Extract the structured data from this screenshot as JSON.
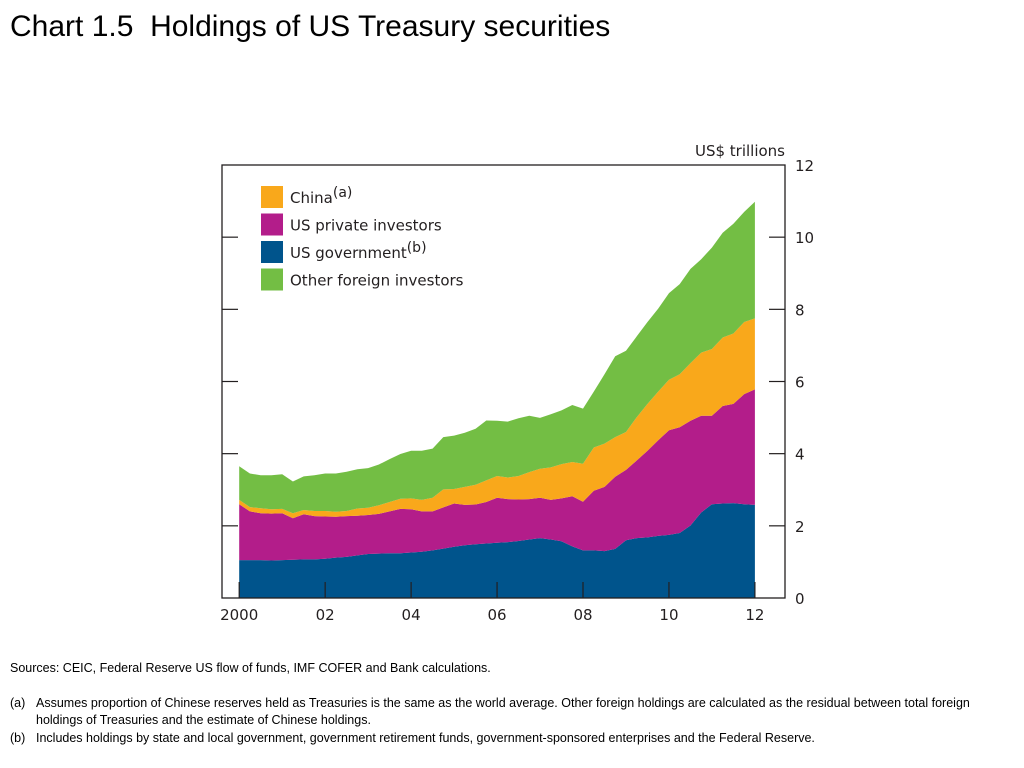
{
  "title": "Chart 1.5  Holdings of US Treasury securities",
  "unit_label": "US$ trillions",
  "sources": "Sources:  CEIC, Federal Reserve US flow of funds, IMF COFER and Bank calculations.",
  "notes": [
    {
      "mark": "(a)",
      "text": "Assumes proportion of Chinese reserves held as Treasuries is the same as the world average.  Other foreign holdings are calculated as the residual between total foreign holdings of Treasuries and the estimate of Chinese holdings."
    },
    {
      "mark": "(b)",
      "text": "Includes holdings by state and local government, government retirement funds, government-sponsored enterprises and the Federal Reserve."
    }
  ],
  "chart_data": {
    "type": "area",
    "stacked": true,
    "legend_position": "top-left",
    "grid": false,
    "ylabel": "US$ trillions",
    "ylim": [
      0,
      12
    ],
    "yticks": [
      0,
      2,
      4,
      6,
      8,
      10,
      12
    ],
    "xlim": [
      1999.6,
      2012.7
    ],
    "xticks": [
      2000,
      2002,
      2004,
      2006,
      2008,
      2010,
      2012
    ],
    "xtick_labels": [
      "2000",
      "02",
      "04",
      "06",
      "08",
      "10",
      "12"
    ],
    "x": [
      2000.0,
      2000.25,
      2000.5,
      2000.75,
      2001.0,
      2001.25,
      2001.5,
      2001.75,
      2002.0,
      2002.25,
      2002.5,
      2002.75,
      2003.0,
      2003.25,
      2003.5,
      2003.75,
      2004.0,
      2004.25,
      2004.5,
      2004.75,
      2005.0,
      2005.25,
      2005.5,
      2005.75,
      2006.0,
      2006.25,
      2006.5,
      2006.75,
      2007.0,
      2007.25,
      2007.5,
      2007.75,
      2008.0,
      2008.25,
      2008.5,
      2008.75,
      2009.0,
      2009.25,
      2009.5,
      2009.75,
      2010.0,
      2010.25,
      2010.5,
      2010.75,
      2011.0,
      2011.25,
      2011.5,
      2011.75,
      2012.0
    ],
    "series": [
      {
        "name": "US government",
        "legend_sup": "(b)",
        "color": "#00548c",
        "values": [
          1.05,
          1.05,
          1.05,
          1.04,
          1.05,
          1.06,
          1.07,
          1.07,
          1.09,
          1.12,
          1.14,
          1.18,
          1.22,
          1.23,
          1.24,
          1.24,
          1.26,
          1.28,
          1.32,
          1.37,
          1.42,
          1.46,
          1.49,
          1.51,
          1.53,
          1.55,
          1.58,
          1.62,
          1.66,
          1.62,
          1.57,
          1.43,
          1.32,
          1.32,
          1.3,
          1.36,
          1.6,
          1.66,
          1.68,
          1.72,
          1.75,
          1.8,
          2.01,
          2.37,
          2.6,
          2.62,
          2.63,
          2.6,
          2.58
        ]
      },
      {
        "name": "US private investors",
        "color": "#b31d8a",
        "values": [
          1.55,
          1.35,
          1.3,
          1.3,
          1.3,
          1.15,
          1.25,
          1.2,
          1.17,
          1.13,
          1.13,
          1.1,
          1.08,
          1.1,
          1.16,
          1.23,
          1.2,
          1.12,
          1.08,
          1.14,
          1.2,
          1.12,
          1.1,
          1.15,
          1.25,
          1.19,
          1.15,
          1.12,
          1.12,
          1.1,
          1.19,
          1.39,
          1.35,
          1.65,
          1.78,
          2.0,
          1.95,
          2.15,
          2.4,
          2.65,
          2.9,
          2.93,
          2.9,
          2.68,
          2.45,
          2.7,
          2.75,
          3.05,
          3.2
        ]
      },
      {
        "name": "China",
        "legend_sup": "(a)",
        "color": "#f9a81b",
        "values": [
          0.12,
          0.12,
          0.14,
          0.12,
          0.12,
          0.14,
          0.12,
          0.14,
          0.15,
          0.14,
          0.14,
          0.2,
          0.2,
          0.24,
          0.26,
          0.28,
          0.3,
          0.32,
          0.38,
          0.5,
          0.4,
          0.5,
          0.55,
          0.6,
          0.6,
          0.6,
          0.65,
          0.75,
          0.8,
          0.9,
          0.95,
          0.95,
          1.05,
          1.2,
          1.2,
          1.1,
          1.05,
          1.2,
          1.3,
          1.35,
          1.4,
          1.47,
          1.6,
          1.75,
          1.85,
          1.9,
          1.95,
          2.0,
          1.97
        ]
      },
      {
        "name": "Other foreign investors",
        "color": "#73be44",
        "values": [
          0.93,
          0.93,
          0.91,
          0.94,
          0.96,
          0.88,
          0.93,
          0.99,
          1.04,
          1.06,
          1.09,
          1.09,
          1.1,
          1.13,
          1.19,
          1.24,
          1.32,
          1.36,
          1.36,
          1.45,
          1.48,
          1.5,
          1.55,
          1.66,
          1.53,
          1.55,
          1.6,
          1.56,
          1.41,
          1.47,
          1.49,
          1.58,
          1.53,
          1.55,
          1.92,
          2.24,
          2.25,
          2.24,
          2.27,
          2.3,
          2.4,
          2.5,
          2.61,
          2.59,
          2.81,
          2.9,
          3.04,
          3.05,
          3.23
        ]
      }
    ]
  }
}
